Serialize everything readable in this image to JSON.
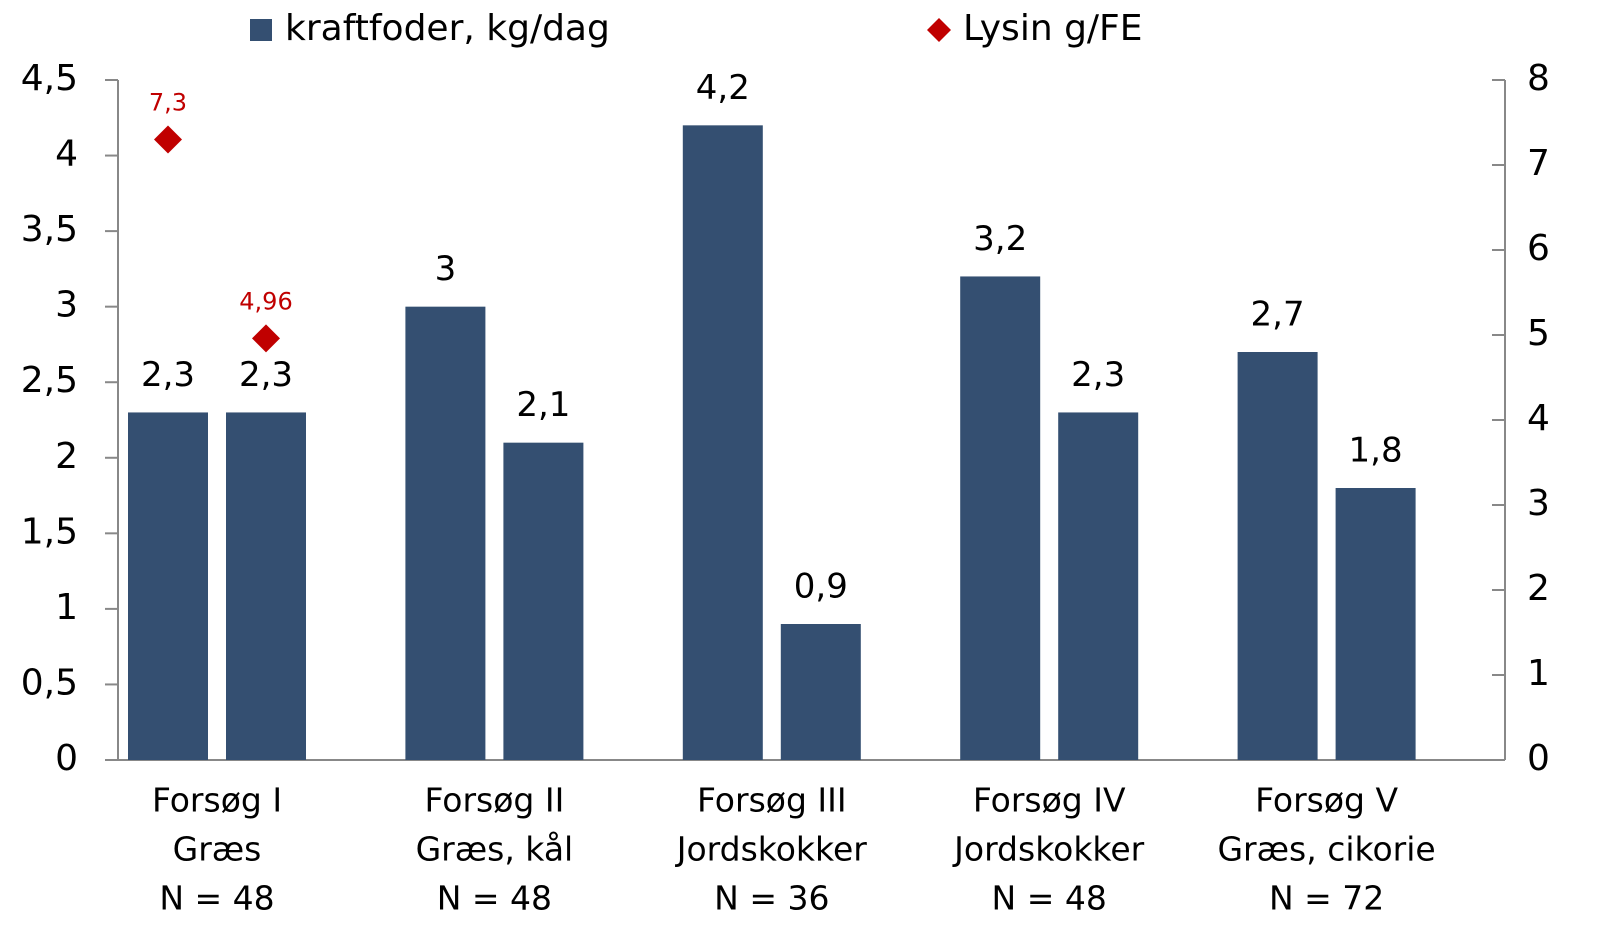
{
  "chart_data": {
    "type": "bar",
    "groups": [
      [
        "Forsøg I",
        "Græs",
        "N = 48"
      ],
      [
        "Forsøg II",
        "Græs, kål",
        "N = 48"
      ],
      [
        "Forsøg III",
        "Jordskokker",
        "N = 36"
      ],
      [
        "Forsøg IV",
        "Jordskokker",
        "N = 48"
      ],
      [
        "Forsøg V",
        "Græs, cikorie",
        "N = 72"
      ]
    ],
    "series": [
      {
        "name": "kraftfoder, kg/dag",
        "type": "bar",
        "color": "#344f71",
        "values": [
          2.3,
          2.3,
          3,
          2.1,
          4.2,
          0.9,
          3.2,
          2.3,
          2.7,
          1.8
        ],
        "value_labels": [
          "2,3",
          "2,3",
          "3",
          "2,1",
          "4,2",
          "0,9",
          "3,2",
          "2,3",
          "2,7",
          "1,8"
        ]
      },
      {
        "name": "Lysin g/FE",
        "type": "scatter",
        "axis": "y2",
        "color": "#c00000",
        "values": [
          7.3,
          4.96,
          null,
          null,
          null,
          null,
          null,
          null,
          null,
          null
        ],
        "value_labels": [
          "7,3",
          "4,96",
          null,
          null,
          null,
          null,
          null,
          null,
          null,
          null
        ]
      }
    ],
    "ylim": [
      0,
      4.5
    ],
    "yticks": [
      0,
      {
        "value": 0.5,
        "label": "0,5"
      },
      1,
      {
        "value": 1.5,
        "label": "1,5"
      },
      2,
      {
        "value": 2.5,
        "label": "2,5"
      },
      3,
      {
        "value": 3.5,
        "label": "3,5"
      },
      4,
      {
        "value": 4.5,
        "label": "4,5"
      }
    ],
    "y2lim": [
      0,
      8
    ],
    "y2ticks": [
      0,
      1,
      2,
      3,
      4,
      5,
      6,
      7,
      8
    ],
    "legend": "top"
  }
}
